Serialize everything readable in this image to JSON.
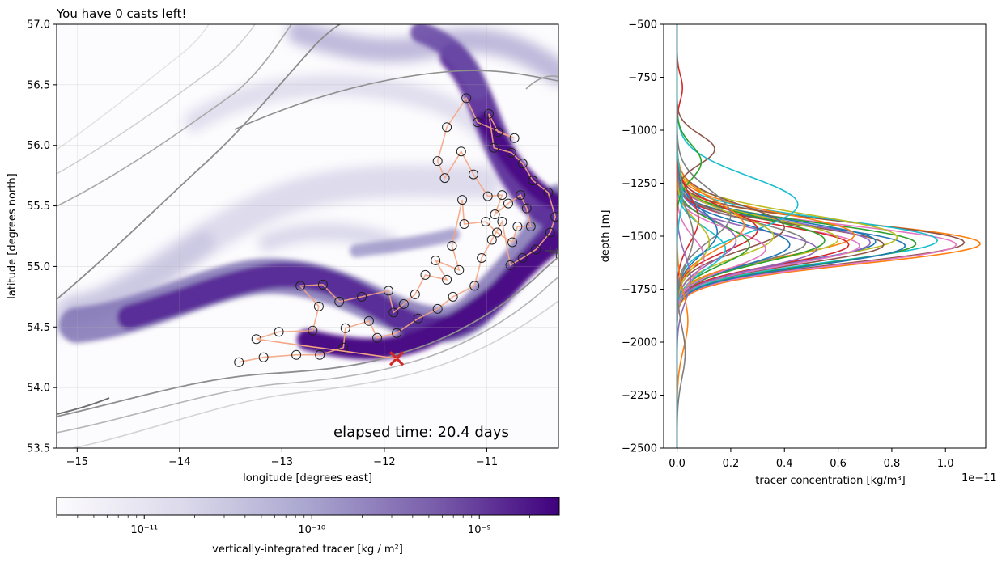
{
  "game": {
    "status_text": "You have 0 casts left!",
    "elapsed_text": "elapsed time: 20.4 days"
  },
  "colors": {
    "path": "#f4a582",
    "cast_edge": "#222222",
    "last_cast": "#d62728",
    "contour": "#6e6e6e",
    "tracer_dark": "#4b0b86",
    "tracer_light": "#fcfbfd"
  },
  "chart_data": [
    {
      "type": "heatmap",
      "title": "",
      "xlabel": "longitude [degrees east]",
      "ylabel": "latitude [degrees north]",
      "xlim": [
        -15.2,
        -10.3
      ],
      "ylim": [
        53.5,
        57.0
      ],
      "xticks": [
        -15,
        -14,
        -13,
        -12,
        -11
      ],
      "yticks": [
        53.5,
        54.0,
        54.5,
        55.0,
        55.5,
        56.0,
        56.5,
        57.0
      ],
      "grid": true,
      "colorbar": {
        "label": "vertically-integrated tracer [kg / m²]",
        "scale": "log",
        "range": [
          3e-12,
          3e-09
        ],
        "ticks": [
          "10⁻¹¹",
          "10⁻¹⁰",
          "10⁻⁹"
        ],
        "tick_values": [
          1e-11,
          1e-10,
          1e-09
        ]
      },
      "cast_path": [
        [
          -13.42,
          54.21
        ],
        [
          -13.18,
          54.25
        ],
        [
          -12.86,
          54.27
        ],
        [
          -12.63,
          54.27
        ],
        [
          -12.4,
          54.33
        ],
        [
          -12.38,
          54.49
        ],
        [
          -12.15,
          54.55
        ],
        [
          -12.07,
          54.41
        ],
        [
          -11.88,
          54.45
        ],
        [
          -11.67,
          54.57
        ],
        [
          -11.48,
          54.65
        ],
        [
          -11.33,
          54.75
        ],
        [
          -11.12,
          54.84
        ],
        [
          -11.05,
          55.07
        ],
        [
          -10.95,
          55.22
        ],
        [
          -10.85,
          55.37
        ],
        [
          -10.77,
          55.01
        ],
        [
          -10.65,
          55.07
        ],
        [
          -10.52,
          55.14
        ],
        [
          -10.38,
          55.28
        ],
        [
          -10.33,
          55.41
        ],
        [
          -10.4,
          55.61
        ],
        [
          -10.55,
          55.71
        ],
        [
          -10.65,
          55.85
        ],
        [
          -10.76,
          55.94
        ],
        [
          -10.93,
          55.98
        ],
        [
          -10.98,
          56.26
        ],
        [
          -10.89,
          56.11
        ],
        [
          -10.73,
          56.06
        ],
        [
          -11.09,
          56.19
        ],
        [
          -11.2,
          56.39
        ],
        [
          -11.39,
          56.15
        ],
        [
          -11.48,
          55.87
        ],
        [
          -11.41,
          55.73
        ],
        [
          -11.25,
          55.95
        ],
        [
          -11.13,
          55.76
        ],
        [
          -10.99,
          55.58
        ],
        [
          -10.85,
          55.59
        ],
        [
          -10.92,
          55.43
        ],
        [
          -10.79,
          55.52
        ],
        [
          -10.67,
          55.59
        ],
        [
          -10.61,
          55.48
        ],
        [
          -10.57,
          55.33
        ],
        [
          -10.7,
          55.33
        ],
        [
          -10.75,
          55.2
        ],
        [
          -10.9,
          55.28
        ],
        [
          -11.01,
          55.37
        ],
        [
          -11.22,
          55.35
        ],
        [
          -11.24,
          55.55
        ],
        [
          -11.34,
          55.17
        ],
        [
          -11.27,
          54.97
        ],
        [
          -11.5,
          55.05
        ],
        [
          -11.39,
          54.89
        ],
        [
          -11.6,
          54.93
        ],
        [
          -11.7,
          54.77
        ],
        [
          -11.81,
          54.69
        ],
        [
          -11.91,
          54.62
        ],
        [
          -11.96,
          54.8
        ],
        [
          -12.22,
          54.75
        ],
        [
          -12.44,
          54.71
        ],
        [
          -12.6,
          54.85
        ],
        [
          -12.82,
          54.84
        ],
        [
          -12.64,
          54.67
        ],
        [
          -12.7,
          54.47
        ],
        [
          -13.03,
          54.46
        ],
        [
          -13.25,
          54.4
        ]
      ],
      "last_cast": [
        -11.88,
        54.24
      ],
      "extra_points": [
        [
          -10.38,
          55.13
        ],
        [
          -10.32,
          55.11
        ]
      ]
    },
    {
      "type": "line",
      "title": "",
      "xlabel": "tracer concentration [kg/m³]",
      "ylabel": "depth [m]",
      "xlim": [
        -0.05,
        1.15
      ],
      "ylim": [
        -2500,
        -500
      ],
      "xticks": [
        0.0,
        0.2,
        0.4,
        0.6,
        0.8,
        1.0
      ],
      "yticks": [
        -500,
        -750,
        -1000,
        -1250,
        -1500,
        -1750,
        -2000,
        -2250,
        -2500
      ],
      "x_offset_text": "1e−11",
      "palette": [
        "#1f77b4",
        "#ff7f0e",
        "#2ca02c",
        "#d62728",
        "#9467bd",
        "#8c564b",
        "#e377c2",
        "#7f7f7f",
        "#bcbd22",
        "#17becf"
      ],
      "profiles": [
        {
          "peak": 1.13,
          "depth": -1535,
          "width": 95,
          "color": "#ff7f0e"
        },
        {
          "peak": 1.07,
          "depth": -1530,
          "width": 95,
          "color": "#8c564b"
        },
        {
          "peak": 1.04,
          "depth": -1540,
          "width": 92,
          "color": "#e377c2"
        },
        {
          "peak": 0.97,
          "depth": -1520,
          "width": 98,
          "color": "#17becf"
        },
        {
          "peak": 0.89,
          "depth": -1535,
          "width": 95,
          "color": "#2ca02c"
        },
        {
          "peak": 0.85,
          "depth": -1545,
          "width": 92,
          "color": "#1f77b4"
        },
        {
          "peak": 0.82,
          "depth": -1505,
          "width": 105,
          "color": "#bcbd22"
        },
        {
          "peak": 0.77,
          "depth": -1540,
          "width": 90,
          "color": "#8c564b"
        },
        {
          "peak": 0.74,
          "depth": -1525,
          "width": 95,
          "color": "#1f77b4"
        },
        {
          "peak": 0.72,
          "depth": -1530,
          "width": 95,
          "color": "#9467bd"
        },
        {
          "peak": 0.68,
          "depth": -1545,
          "width": 90,
          "color": "#e377c2"
        },
        {
          "peak": 0.66,
          "depth": -1495,
          "width": 100,
          "color": "#ff7f0e"
        },
        {
          "peak": 0.64,
          "depth": -1540,
          "width": 90,
          "color": "#d62728"
        },
        {
          "peak": 0.6,
          "depth": -1515,
          "width": 95,
          "color": "#bcbd22"
        },
        {
          "peak": 0.55,
          "depth": -1520,
          "width": 100,
          "color": "#2ca02c"
        },
        {
          "peak": 0.52,
          "depth": -1560,
          "width": 88,
          "color": "#9467bd"
        },
        {
          "peak": 0.48,
          "depth": -1530,
          "width": 95,
          "color": "#7f7f7f"
        },
        {
          "peak": 0.45,
          "depth": -1350,
          "width": 130,
          "color": "#17becf"
        },
        {
          "peak": 0.42,
          "depth": -1540,
          "width": 95,
          "color": "#1f77b4"
        },
        {
          "peak": 0.4,
          "depth": -1460,
          "width": 105,
          "color": "#8c564b"
        },
        {
          "peak": 0.36,
          "depth": -1500,
          "width": 100,
          "color": "#bcbd22"
        },
        {
          "peak": 0.33,
          "depth": -1560,
          "width": 90,
          "color": "#e377c2"
        },
        {
          "peak": 0.3,
          "depth": -1470,
          "width": 100,
          "color": "#d62728"
        },
        {
          "peak": 0.27,
          "depth": -1540,
          "width": 95,
          "color": "#2ca02c"
        },
        {
          "peak": 0.25,
          "depth": -1450,
          "width": 110,
          "color": "#ff7f0e"
        },
        {
          "peak": 0.22,
          "depth": -1520,
          "width": 100,
          "color": "#9467bd"
        },
        {
          "peak": 0.2,
          "depth": -1400,
          "width": 120,
          "color": "#7f7f7f"
        },
        {
          "peak": 0.18,
          "depth": -1560,
          "width": 95,
          "color": "#17becf"
        },
        {
          "peak": 0.15,
          "depth": -1480,
          "width": 105,
          "color": "#1f77b4"
        },
        {
          "peak": 0.14,
          "depth": -1090,
          "width": 70,
          "color": "#8c564b"
        },
        {
          "peak": 0.12,
          "depth": -1530,
          "width": 100,
          "color": "#bcbd22"
        },
        {
          "peak": 0.1,
          "depth": -1600,
          "width": 95,
          "color": "#e377c2"
        },
        {
          "peak": 0.09,
          "depth": -1150,
          "width": 80,
          "color": "#2ca02c"
        },
        {
          "peak": 0.08,
          "depth": -1420,
          "width": 110,
          "color": "#d62728"
        },
        {
          "peak": 0.06,
          "depth": -1500,
          "width": 120,
          "color": "#7f7f7f"
        },
        {
          "peak": 0.05,
          "depth": -1700,
          "width": 110,
          "color": "#9467bd"
        },
        {
          "peak": 0.04,
          "depth": -1900,
          "width": 130,
          "color": "#ff7f0e"
        },
        {
          "peak": 0.03,
          "depth": -2050,
          "width": 120,
          "color": "#7f7f7f"
        },
        {
          "peak": 0.02,
          "depth": -800,
          "width": 60,
          "color": "#d62728"
        },
        {
          "peak": 0.02,
          "depth": -1300,
          "width": 90,
          "color": "#17becf"
        }
      ]
    }
  ]
}
